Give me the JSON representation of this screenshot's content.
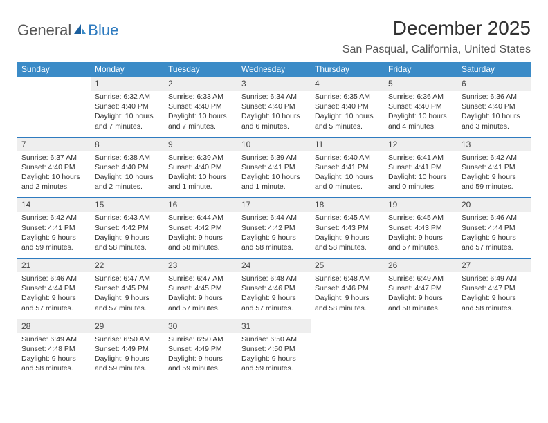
{
  "logo": {
    "text1": "General",
    "text2": "Blue",
    "gray_color": "#6b6b6b",
    "blue_color": "#2f7bbf"
  },
  "title": "December 2025",
  "location": "San Pasqual, California, United States",
  "colors": {
    "header_bg": "#3b8bc7",
    "header_text": "#ffffff",
    "daynum_bg": "#eeeeee",
    "week_divider": "#2f7bbf",
    "text": "#333333"
  },
  "dow": [
    "Sunday",
    "Monday",
    "Tuesday",
    "Wednesday",
    "Thursday",
    "Friday",
    "Saturday"
  ],
  "weeks": [
    [
      null,
      {
        "n": "1",
        "sunrise": "6:32 AM",
        "sunset": "4:40 PM",
        "daylight": "10 hours and 7 minutes."
      },
      {
        "n": "2",
        "sunrise": "6:33 AM",
        "sunset": "4:40 PM",
        "daylight": "10 hours and 7 minutes."
      },
      {
        "n": "3",
        "sunrise": "6:34 AM",
        "sunset": "4:40 PM",
        "daylight": "10 hours and 6 minutes."
      },
      {
        "n": "4",
        "sunrise": "6:35 AM",
        "sunset": "4:40 PM",
        "daylight": "10 hours and 5 minutes."
      },
      {
        "n": "5",
        "sunrise": "6:36 AM",
        "sunset": "4:40 PM",
        "daylight": "10 hours and 4 minutes."
      },
      {
        "n": "6",
        "sunrise": "6:36 AM",
        "sunset": "4:40 PM",
        "daylight": "10 hours and 3 minutes."
      }
    ],
    [
      {
        "n": "7",
        "sunrise": "6:37 AM",
        "sunset": "4:40 PM",
        "daylight": "10 hours and 2 minutes."
      },
      {
        "n": "8",
        "sunrise": "6:38 AM",
        "sunset": "4:40 PM",
        "daylight": "10 hours and 2 minutes."
      },
      {
        "n": "9",
        "sunrise": "6:39 AM",
        "sunset": "4:40 PM",
        "daylight": "10 hours and 1 minute."
      },
      {
        "n": "10",
        "sunrise": "6:39 AM",
        "sunset": "4:41 PM",
        "daylight": "10 hours and 1 minute."
      },
      {
        "n": "11",
        "sunrise": "6:40 AM",
        "sunset": "4:41 PM",
        "daylight": "10 hours and 0 minutes."
      },
      {
        "n": "12",
        "sunrise": "6:41 AM",
        "sunset": "4:41 PM",
        "daylight": "10 hours and 0 minutes."
      },
      {
        "n": "13",
        "sunrise": "6:42 AM",
        "sunset": "4:41 PM",
        "daylight": "9 hours and 59 minutes."
      }
    ],
    [
      {
        "n": "14",
        "sunrise": "6:42 AM",
        "sunset": "4:41 PM",
        "daylight": "9 hours and 59 minutes."
      },
      {
        "n": "15",
        "sunrise": "6:43 AM",
        "sunset": "4:42 PM",
        "daylight": "9 hours and 58 minutes."
      },
      {
        "n": "16",
        "sunrise": "6:44 AM",
        "sunset": "4:42 PM",
        "daylight": "9 hours and 58 minutes."
      },
      {
        "n": "17",
        "sunrise": "6:44 AM",
        "sunset": "4:42 PM",
        "daylight": "9 hours and 58 minutes."
      },
      {
        "n": "18",
        "sunrise": "6:45 AM",
        "sunset": "4:43 PM",
        "daylight": "9 hours and 58 minutes."
      },
      {
        "n": "19",
        "sunrise": "6:45 AM",
        "sunset": "4:43 PM",
        "daylight": "9 hours and 57 minutes."
      },
      {
        "n": "20",
        "sunrise": "6:46 AM",
        "sunset": "4:44 PM",
        "daylight": "9 hours and 57 minutes."
      }
    ],
    [
      {
        "n": "21",
        "sunrise": "6:46 AM",
        "sunset": "4:44 PM",
        "daylight": "9 hours and 57 minutes."
      },
      {
        "n": "22",
        "sunrise": "6:47 AM",
        "sunset": "4:45 PM",
        "daylight": "9 hours and 57 minutes."
      },
      {
        "n": "23",
        "sunrise": "6:47 AM",
        "sunset": "4:45 PM",
        "daylight": "9 hours and 57 minutes."
      },
      {
        "n": "24",
        "sunrise": "6:48 AM",
        "sunset": "4:46 PM",
        "daylight": "9 hours and 57 minutes."
      },
      {
        "n": "25",
        "sunrise": "6:48 AM",
        "sunset": "4:46 PM",
        "daylight": "9 hours and 58 minutes."
      },
      {
        "n": "26",
        "sunrise": "6:49 AM",
        "sunset": "4:47 PM",
        "daylight": "9 hours and 58 minutes."
      },
      {
        "n": "27",
        "sunrise": "6:49 AM",
        "sunset": "4:47 PM",
        "daylight": "9 hours and 58 minutes."
      }
    ],
    [
      {
        "n": "28",
        "sunrise": "6:49 AM",
        "sunset": "4:48 PM",
        "daylight": "9 hours and 58 minutes."
      },
      {
        "n": "29",
        "sunrise": "6:50 AM",
        "sunset": "4:49 PM",
        "daylight": "9 hours and 59 minutes."
      },
      {
        "n": "30",
        "sunrise": "6:50 AM",
        "sunset": "4:49 PM",
        "daylight": "9 hours and 59 minutes."
      },
      {
        "n": "31",
        "sunrise": "6:50 AM",
        "sunset": "4:50 PM",
        "daylight": "9 hours and 59 minutes."
      },
      null,
      null,
      null
    ]
  ]
}
